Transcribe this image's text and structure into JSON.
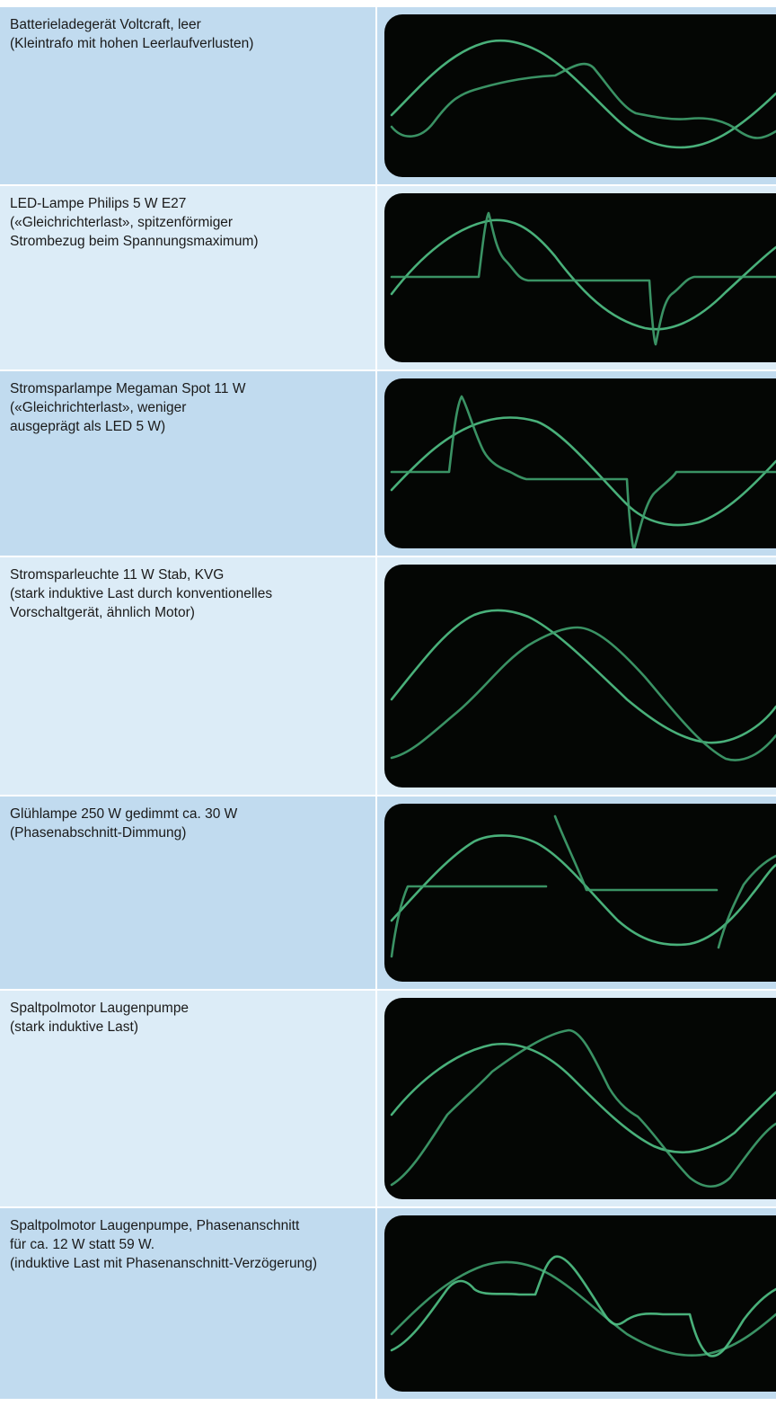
{
  "rows": [
    {
      "lines": [
        "Batterieladegerät Voltcraft, leer",
        "(Kleintrafo mit hohen Leerlaufverlusten)"
      ]
    },
    {
      "lines": [
        "LED-Lampe Philips 5 W E27",
        "(«Gleichrichterlast», spitzenförmiger",
        "Strombezug beim Spannungsmaximum)"
      ]
    },
    {
      "lines": [
        "Stromsparlampe Megaman Spot 11 W",
        "(«Gleichrichterlast», weniger",
        "ausgeprägt als LED 5 W)"
      ]
    },
    {
      "lines": [
        "Stromsparleuchte 11 W Stab, KVG",
        "(stark induktive Last durch konventionelles",
        "Vorschaltgerät, ähnlich Motor)"
      ]
    },
    {
      "lines": [
        "Glühlampe 250 W gedimmt ca. 30 W",
        "(Phasenabschnitt-Dimmung)"
      ]
    },
    {
      "lines": [
        "Spaltpolmotor Laugenpumpe",
        "(stark induktive Last)"
      ]
    },
    {
      "lines": [
        "Spaltpolmotor Laugenpumpe, Phasenanschnitt",
        "für ca. 12 W statt 59 W.",
        "(induktive Last mit Phasenanschnitt-Verzögerung)"
      ]
    }
  ]
}
